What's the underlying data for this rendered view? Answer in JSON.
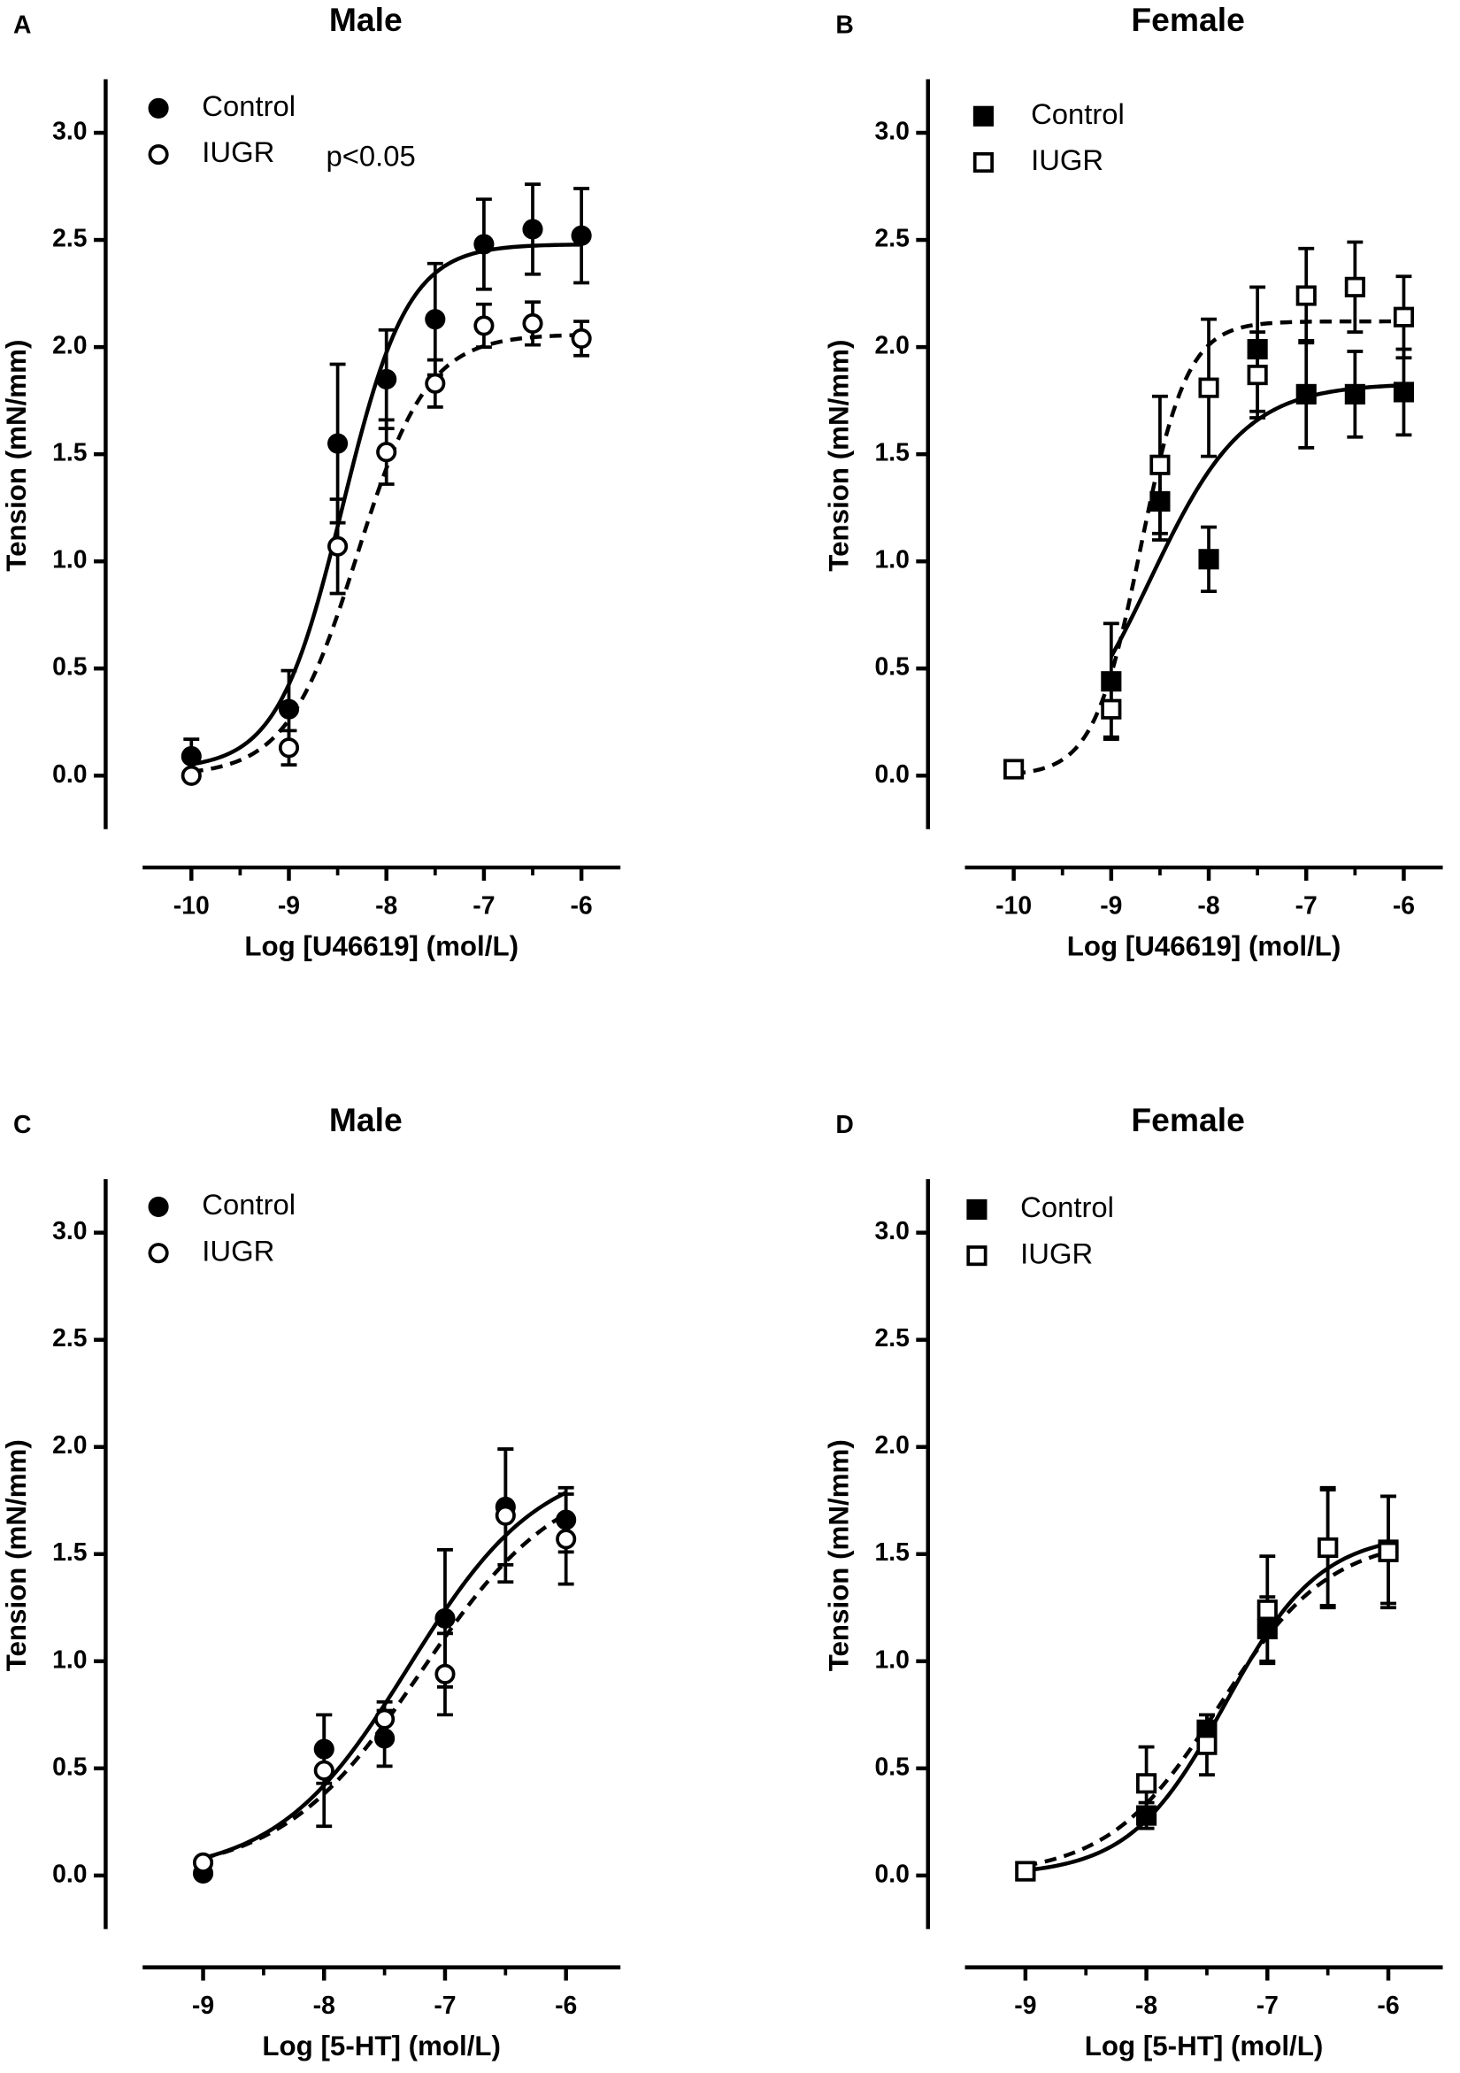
{
  "chart_data": [
    {
      "type": "scatter",
      "panel": "A",
      "title": "Male",
      "xlabel": "Log [U46619] (mol/L)",
      "ylabel": "Tension (mN/mm)",
      "annotation": "p<0.05",
      "xlim": [
        -10.5,
        -5.6
      ],
      "ylim": [
        -0.25,
        3.25
      ],
      "xticks": [
        -10,
        -9,
        -8,
        -7,
        -6
      ],
      "xminorticks": [
        -9.5,
        -8.5,
        -7.5,
        -6.5
      ],
      "yticks": [
        {
          "value": 0,
          "label": "0.0"
        },
        {
          "value": 0.5,
          "label": "0.5"
        },
        {
          "value": 1,
          "label": "1.0"
        },
        {
          "value": 1.5,
          "label": "1.5"
        },
        {
          "value": 2,
          "label": "2.0"
        },
        {
          "value": 2.5,
          "label": "2.5"
        },
        {
          "value": 3,
          "label": "3.0"
        }
      ],
      "series": [
        {
          "name": "Control",
          "marker": "circle",
          "fill": "#000000",
          "color": "#000000",
          "line": "solid",
          "x": [
            -10,
            -9,
            -8.5,
            -8,
            -7.5,
            -7,
            -6.5,
            -6
          ],
          "values": [
            0.09,
            0.31,
            1.55,
            1.85,
            2.13,
            2.48,
            2.55,
            2.52
          ],
          "errors": [
            0.08,
            0.18,
            0.37,
            0.23,
            0.26,
            0.21,
            0.21,
            0.22
          ],
          "fit": {
            "bottom": 0.03,
            "top": 2.48,
            "log_ec50": -8.45,
            "hill": 1.3
          }
        },
        {
          "name": "IUGR",
          "marker": "circle",
          "fill": "#ffffff",
          "color": "#000000",
          "line": "dashed",
          "x": [
            -10,
            -9,
            -8.5,
            -8,
            -7.5,
            -7,
            -6.5,
            -6
          ],
          "values": [
            0.0,
            0.13,
            1.07,
            1.51,
            1.83,
            2.1,
            2.11,
            2.04
          ],
          "errors": [
            0.02,
            0.08,
            0.22,
            0.15,
            0.11,
            0.1,
            0.1,
            0.08
          ],
          "fit": {
            "bottom": 0,
            "top": 2.06,
            "log_ec50": -8.3,
            "hill": 1.2
          }
        }
      ]
    },
    {
      "type": "scatter",
      "panel": "B",
      "title": "Female",
      "xlabel": "Log [U46619] (mol/L)",
      "ylabel": "Tension (mN/mm)",
      "xlim": [
        -10.5,
        -5.6
      ],
      "ylim": [
        -0.25,
        3.25
      ],
      "xticks": [
        -10,
        -9,
        -8,
        -7,
        -6
      ],
      "xminorticks": [
        -9.5,
        -8.5,
        -7.5,
        -6.5
      ],
      "yticks": [
        {
          "value": 0,
          "label": "0.0"
        },
        {
          "value": 0.5,
          "label": "0.5"
        },
        {
          "value": 1,
          "label": "1.0"
        },
        {
          "value": 1.5,
          "label": "1.5"
        },
        {
          "value": 2,
          "label": "2.0"
        },
        {
          "value": 2.5,
          "label": "2.5"
        },
        {
          "value": 3,
          "label": "3.0"
        }
      ],
      "series": [
        {
          "name": "Control",
          "marker": "square",
          "fill": "#000000",
          "color": "#000000",
          "line": "solid",
          "x": [
            -9,
            -8.5,
            -8,
            -7.5,
            -7,
            -6.5,
            -6
          ],
          "values": [
            0.44,
            1.28,
            1.01,
            1.99,
            1.78,
            1.78,
            1.79
          ],
          "errors": [
            0.27,
            0.18,
            0.15,
            0.29,
            0.25,
            0.2,
            0.2
          ],
          "fit": {
            "bottom": 0,
            "top": 1.83,
            "log_ec50": -8.6,
            "hill": 0.9
          }
        },
        {
          "name": "IUGR",
          "marker": "square",
          "fill": "#ffffff",
          "color": "#000000",
          "line": "dashed",
          "x": [
            -10,
            -9,
            -8.5,
            -8,
            -7.5,
            -7,
            -6.5,
            -6
          ],
          "values": [
            0.03,
            0.31,
            1.45,
            1.81,
            1.87,
            2.24,
            2.28,
            2.14
          ],
          "errors": [
            0.01,
            0.13,
            0.32,
            0.32,
            0.2,
            0.22,
            0.21,
            0.19
          ],
          "fit": {
            "bottom": 0,
            "top": 2.12,
            "log_ec50": -8.7,
            "hill": 1.8
          }
        }
      ]
    },
    {
      "type": "scatter",
      "panel": "C",
      "title": "Male",
      "xlabel": "Log [5-HT] (mol/L)",
      "ylabel": "Tension (mN/mm)",
      "xlim": [
        -9.5,
        -5.55
      ],
      "ylim": [
        -0.25,
        3.25
      ],
      "xticks": [
        -9,
        -8,
        -7,
        -6
      ],
      "xminorticks": [
        -8.5,
        -7.5,
        -6.5
      ],
      "yticks": [
        {
          "value": 0,
          "label": "0.0"
        },
        {
          "value": 0.5,
          "label": "0.5"
        },
        {
          "value": 1,
          "label": "1.0"
        },
        {
          "value": 1.5,
          "label": "1.5"
        },
        {
          "value": 2,
          "label": "2.0"
        },
        {
          "value": 2.5,
          "label": "2.5"
        },
        {
          "value": 3,
          "label": "3.0"
        }
      ],
      "series": [
        {
          "name": "Control",
          "marker": "circle",
          "fill": "#000000",
          "color": "#000000",
          "line": "solid",
          "x": [
            -9,
            -8,
            -7.5,
            -7,
            -6.5,
            -6
          ],
          "values": [
            0.01,
            0.59,
            0.64,
            1.2,
            1.72,
            1.66
          ],
          "errors": [
            0.02,
            0.16,
            0.13,
            0.32,
            0.27,
            0.15
          ],
          "fit": {
            "bottom": 0,
            "top": 1.95,
            "log_ec50": -7.3,
            "hill": 0.8
          }
        },
        {
          "name": "IUGR",
          "marker": "circle",
          "fill": "#ffffff",
          "color": "#000000",
          "line": "dashed",
          "x": [
            -9,
            -8,
            -7.5,
            -7,
            -6.5,
            -6
          ],
          "values": [
            0.06,
            0.49,
            0.73,
            0.94,
            1.68,
            1.57
          ],
          "errors": [
            0.02,
            0.26,
            0.08,
            0.19,
            0.31,
            0.21
          ],
          "fit": {
            "bottom": 0,
            "top": 1.9,
            "log_ec50": -7.2,
            "hill": 0.75
          }
        }
      ]
    },
    {
      "type": "scatter",
      "panel": "D",
      "title": "Female",
      "xlabel": "Log [5-HT] (mol/L)",
      "ylabel": "Tension (mN/mm)",
      "xlim": [
        -9.5,
        -5.55
      ],
      "ylim": [
        -0.25,
        3.25
      ],
      "xticks": [
        -9,
        -8,
        -7,
        -6
      ],
      "xminorticks": [
        -8.5,
        -7.5,
        -6.5
      ],
      "yticks": [
        {
          "value": 0,
          "label": "0.0"
        },
        {
          "value": 0.5,
          "label": "0.5"
        },
        {
          "value": 1,
          "label": "1.0"
        },
        {
          "value": 1.5,
          "label": "1.5"
        },
        {
          "value": 2,
          "label": "2.0"
        },
        {
          "value": 2.5,
          "label": "2.5"
        },
        {
          "value": 3,
          "label": "3.0"
        }
      ],
      "series": [
        {
          "name": "Control",
          "marker": "square",
          "fill": "#000000",
          "color": "#000000",
          "line": "solid",
          "x": [
            -9,
            -8,
            -7.5,
            -7,
            -6.5,
            -6
          ],
          "values": [
            0.02,
            0.28,
            0.68,
            1.15,
            1.53,
            1.52
          ],
          "errors": [
            0.02,
            0.06,
            0.07,
            0.15,
            0.27,
            0.25
          ],
          "fit": {
            "bottom": 0,
            "top": 1.6,
            "log_ec50": -7.35,
            "hill": 1.1
          }
        },
        {
          "name": "IUGR",
          "marker": "square",
          "fill": "#ffffff",
          "color": "#000000",
          "line": "dashed",
          "x": [
            -9,
            -8,
            -7.5,
            -7,
            -6.5,
            -6
          ],
          "values": [
            0.02,
            0.43,
            0.61,
            1.24,
            1.53,
            1.51
          ],
          "errors": [
            0.02,
            0.17,
            0.14,
            0.25,
            0.28,
            0.26
          ],
          "fit": {
            "bottom": 0,
            "top": 1.58,
            "log_ec50": -7.4,
            "hill": 0.95
          }
        }
      ]
    }
  ]
}
